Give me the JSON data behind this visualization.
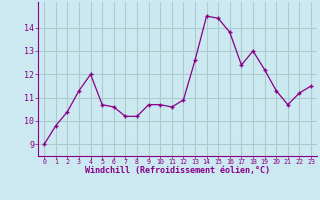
{
  "x": [
    0,
    1,
    2,
    3,
    4,
    5,
    6,
    7,
    8,
    9,
    10,
    11,
    12,
    13,
    14,
    15,
    16,
    17,
    18,
    19,
    20,
    21,
    22,
    23
  ],
  "y": [
    9.0,
    9.8,
    10.4,
    11.3,
    12.0,
    10.7,
    10.6,
    10.2,
    10.2,
    10.7,
    10.7,
    10.6,
    10.9,
    12.6,
    14.5,
    14.4,
    13.8,
    12.4,
    13.0,
    12.2,
    11.3,
    10.7,
    11.2,
    11.5
  ],
  "line_color": "#880088",
  "marker": "+",
  "bg_color": "#cce8f0",
  "grid_color": "#aacccc",
  "xlabel": "Windchill (Refroidissement éolien,°C)",
  "tick_color": "#880088",
  "ylim": [
    8.5,
    15.1
  ],
  "xlim": [
    -0.5,
    23.5
  ],
  "yticks": [
    9,
    10,
    11,
    12,
    13,
    14
  ],
  "xticks": [
    0,
    1,
    2,
    3,
    4,
    5,
    6,
    7,
    8,
    9,
    10,
    11,
    12,
    13,
    14,
    15,
    16,
    17,
    18,
    19,
    20,
    21,
    22,
    23
  ]
}
